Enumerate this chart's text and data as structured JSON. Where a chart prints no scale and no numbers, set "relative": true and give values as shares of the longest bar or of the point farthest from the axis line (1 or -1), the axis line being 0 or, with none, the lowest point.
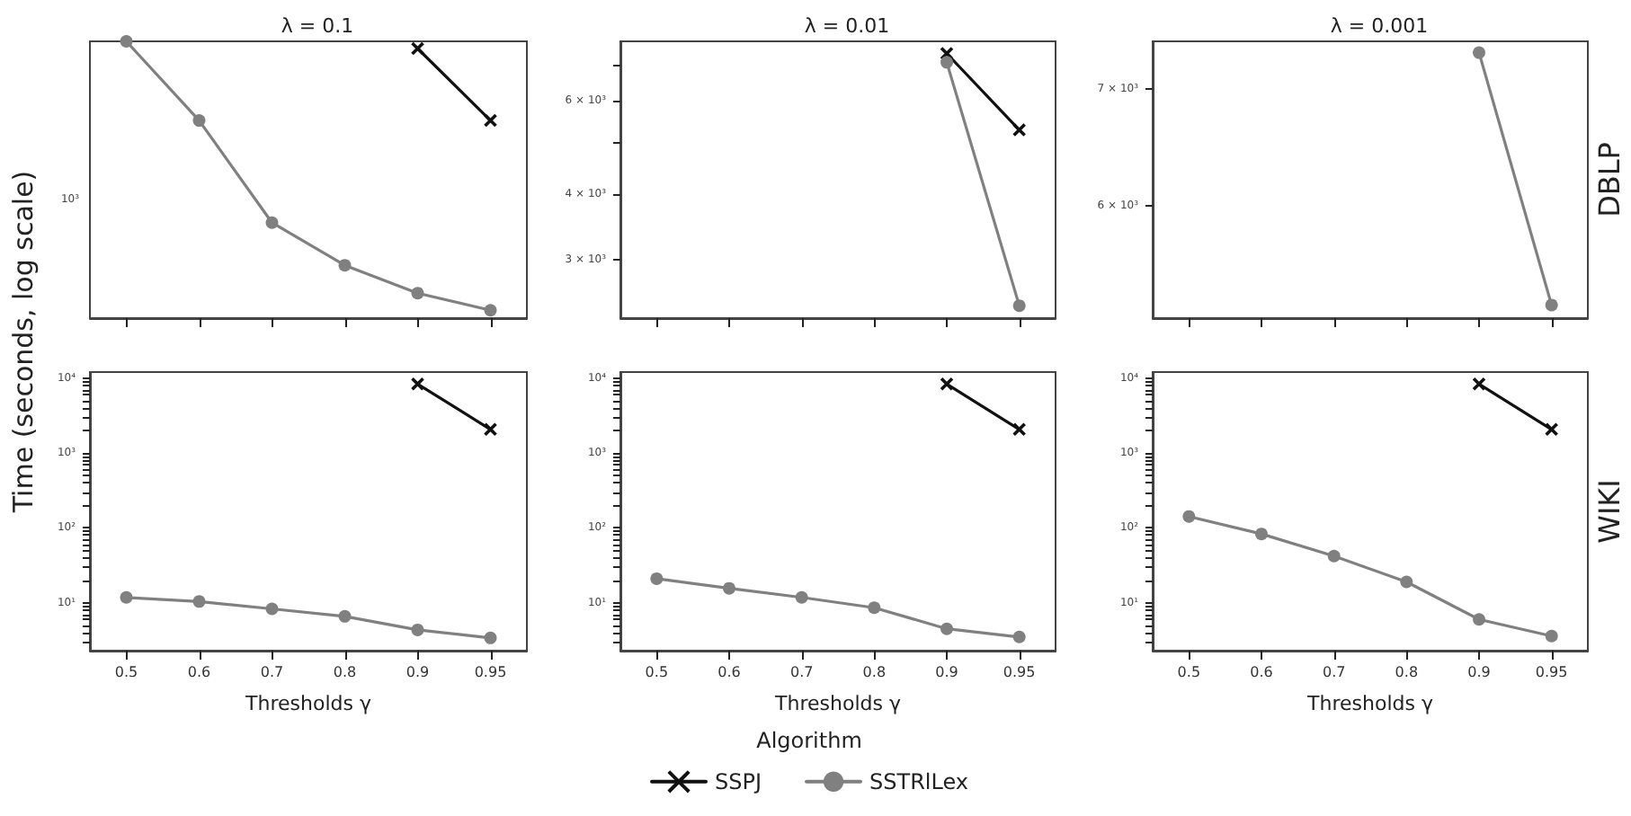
{
  "chart_data": [
    {
      "type": "line",
      "title": "λ = 0.1",
      "ylabel": "Time (seconds, log scale)",
      "relative": true,
      "tick_labels": false,
      "categories": [
        "0.5",
        "0.6",
        "0.7",
        "0.8",
        "0.9",
        "0.95"
      ],
      "annotations": [
        "10³"
      ],
      "series": [
        {
          "color": "#111111",
          "marker": "cross",
          "values": [
            null,
            null,
            null,
            null,
            0.974,
            0.714
          ]
        },
        {
          "color": "#808080",
          "marker": "circle",
          "values": [
            1,
            0.714,
            0.345,
            0.191,
            0.0903,
            0.0286
          ]
        }
      ]
    },
    {
      "type": "line",
      "title": "λ = 0.01",
      "log": true,
      "tick_labels": "y",
      "categories": [
        "0.5",
        "0.6",
        "0.7",
        "0.8",
        "0.9",
        "0.95"
      ],
      "ylim": [
        2330,
        7780
      ],
      "yticks": [
        {
          "value": 3000,
          "label": "3 × 10³"
        },
        {
          "value": 4000,
          "label": "4 × 10³"
        },
        {
          "value": 5000,
          "label": null
        },
        {
          "value": 6000,
          "label": "6 × 10³"
        },
        {
          "value": 7000,
          "label": null
        }
      ],
      "series": [
        {
          "color": "#111111",
          "marker": "cross",
          "values": [
            null,
            null,
            null,
            null,
            7380,
            5290
          ]
        },
        {
          "color": "#808080",
          "marker": "circle",
          "values": [
            null,
            null,
            null,
            null,
            7100,
            2460
          ]
        }
      ]
    },
    {
      "type": "line",
      "title": "λ = 0.001",
      "annotations": [
        "DBLP"
      ],
      "log": true,
      "tick_labels": "y",
      "categories": [
        "0.5",
        "0.6",
        "0.7",
        "0.8",
        "0.9",
        "0.95"
      ],
      "ylim": [
        5180,
        7450
      ],
      "yticks": [
        {
          "value": 6000,
          "label": "6 × 10³"
        },
        {
          "value": 7000,
          "label": "7 × 10³"
        }
      ],
      "series": [
        {
          "color": "#111111",
          "marker": "cross",
          "values": [
            null,
            null,
            null,
            null,
            null,
            null
          ]
        },
        {
          "color": "#808080",
          "marker": "circle",
          "values": [
            null,
            null,
            null,
            null,
            7340,
            5270
          ]
        }
      ]
    },
    {
      "type": "line",
      "xlabel": "Thresholds γ",
      "log": true,
      "categories": [
        "0.5",
        "0.6",
        "0.7",
        "0.8",
        "0.9",
        "0.95"
      ],
      "ylim": [
        2.3,
        12000
      ],
      "yticks": [
        {
          "value": 3,
          "label": null
        },
        {
          "value": 4,
          "label": null
        },
        {
          "value": 5,
          "label": null
        },
        {
          "value": 6,
          "label": null
        },
        {
          "value": 7,
          "label": null
        },
        {
          "value": 8,
          "label": null
        },
        {
          "value": 9,
          "label": null
        },
        {
          "value": 10,
          "label": "10¹"
        },
        {
          "value": 20,
          "label": null
        },
        {
          "value": 30,
          "label": null
        },
        {
          "value": 40,
          "label": null
        },
        {
          "value": 50,
          "label": null
        },
        {
          "value": 60,
          "label": null
        },
        {
          "value": 70,
          "label": null
        },
        {
          "value": 80,
          "label": null
        },
        {
          "value": 90,
          "label": null
        },
        {
          "value": 100,
          "label": "10²"
        },
        {
          "value": 200,
          "label": null
        },
        {
          "value": 300,
          "label": null
        },
        {
          "value": 400,
          "label": null
        },
        {
          "value": 500,
          "label": null
        },
        {
          "value": 600,
          "label": null
        },
        {
          "value": 700,
          "label": null
        },
        {
          "value": 800,
          "label": null
        },
        {
          "value": 900,
          "label": null
        },
        {
          "value": 1000,
          "label": "10³"
        },
        {
          "value": 2000,
          "label": null
        },
        {
          "value": 3000,
          "label": null
        },
        {
          "value": 4000,
          "label": null
        },
        {
          "value": 5000,
          "label": null
        },
        {
          "value": 6000,
          "label": null
        },
        {
          "value": 7000,
          "label": null
        },
        {
          "value": 8000,
          "label": null
        },
        {
          "value": 9000,
          "label": null
        },
        {
          "value": 10000,
          "label": "10⁴"
        }
      ],
      "series": [
        {
          "color": "#111111",
          "marker": "cross",
          "values": [
            null,
            null,
            null,
            null,
            8300,
            2060
          ]
        },
        {
          "color": "#808080",
          "marker": "circle",
          "values": [
            11.8,
            10.4,
            8.3,
            6.6,
            4.35,
            3.4
          ]
        }
      ]
    },
    {
      "type": "line",
      "xlabel": "Thresholds γ",
      "log": true,
      "legend": "bottom",
      "legend_title": "Algorithm",
      "categories": [
        "0.5",
        "0.6",
        "0.7",
        "0.8",
        "0.9",
        "0.95"
      ],
      "ylim": [
        2.3,
        12000
      ],
      "yticks": [
        {
          "value": 3,
          "label": null
        },
        {
          "value": 4,
          "label": null
        },
        {
          "value": 5,
          "label": null
        },
        {
          "value": 6,
          "label": null
        },
        {
          "value": 7,
          "label": null
        },
        {
          "value": 8,
          "label": null
        },
        {
          "value": 9,
          "label": null
        },
        {
          "value": 10,
          "label": "10¹"
        },
        {
          "value": 20,
          "label": null
        },
        {
          "value": 30,
          "label": null
        },
        {
          "value": 40,
          "label": null
        },
        {
          "value": 50,
          "label": null
        },
        {
          "value": 60,
          "label": null
        },
        {
          "value": 70,
          "label": null
        },
        {
          "value": 80,
          "label": null
        },
        {
          "value": 90,
          "label": null
        },
        {
          "value": 100,
          "label": "10²"
        },
        {
          "value": 200,
          "label": null
        },
        {
          "value": 300,
          "label": null
        },
        {
          "value": 400,
          "label": null
        },
        {
          "value": 500,
          "label": null
        },
        {
          "value": 600,
          "label": null
        },
        {
          "value": 700,
          "label": null
        },
        {
          "value": 800,
          "label": null
        },
        {
          "value": 900,
          "label": null
        },
        {
          "value": 1000,
          "label": "10³"
        },
        {
          "value": 2000,
          "label": null
        },
        {
          "value": 3000,
          "label": null
        },
        {
          "value": 4000,
          "label": null
        },
        {
          "value": 5000,
          "label": null
        },
        {
          "value": 6000,
          "label": null
        },
        {
          "value": 7000,
          "label": null
        },
        {
          "value": 8000,
          "label": null
        },
        {
          "value": 9000,
          "label": null
        },
        {
          "value": 10000,
          "label": "10⁴"
        }
      ],
      "series": [
        {
          "name": "SSPJ",
          "color": "#111111",
          "marker": "cross",
          "values": [
            null,
            null,
            null,
            null,
            8300,
            2060
          ]
        },
        {
          "name": "SSTRlLex",
          "color": "#808080",
          "marker": "circle",
          "values": [
            21,
            15.6,
            11.8,
            8.6,
            4.5,
            3.5
          ]
        }
      ]
    },
    {
      "type": "line",
      "xlabel": "Thresholds γ",
      "annotations": [
        "WIKI"
      ],
      "log": true,
      "categories": [
        "0.5",
        "0.6",
        "0.7",
        "0.8",
        "0.9",
        "0.95"
      ],
      "ylim": [
        2.3,
        12000
      ],
      "yticks": [
        {
          "value": 3,
          "label": null
        },
        {
          "value": 4,
          "label": null
        },
        {
          "value": 5,
          "label": null
        },
        {
          "value": 6,
          "label": null
        },
        {
          "value": 7,
          "label": null
        },
        {
          "value": 8,
          "label": null
        },
        {
          "value": 9,
          "label": null
        },
        {
          "value": 10,
          "label": "10¹"
        },
        {
          "value": 20,
          "label": null
        },
        {
          "value": 30,
          "label": null
        },
        {
          "value": 40,
          "label": null
        },
        {
          "value": 50,
          "label": null
        },
        {
          "value": 60,
          "label": null
        },
        {
          "value": 70,
          "label": null
        },
        {
          "value": 80,
          "label": null
        },
        {
          "value": 90,
          "label": null
        },
        {
          "value": 100,
          "label": "10²"
        },
        {
          "value": 200,
          "label": null
        },
        {
          "value": 300,
          "label": null
        },
        {
          "value": 400,
          "label": null
        },
        {
          "value": 500,
          "label": null
        },
        {
          "value": 600,
          "label": null
        },
        {
          "value": 700,
          "label": null
        },
        {
          "value": 800,
          "label": null
        },
        {
          "value": 900,
          "label": null
        },
        {
          "value": 1000,
          "label": "10³"
        },
        {
          "value": 2000,
          "label": null
        },
        {
          "value": 3000,
          "label": null
        },
        {
          "value": 4000,
          "label": null
        },
        {
          "value": 5000,
          "label": null
        },
        {
          "value": 6000,
          "label": null
        },
        {
          "value": 7000,
          "label": null
        },
        {
          "value": 8000,
          "label": null
        },
        {
          "value": 9000,
          "label": null
        },
        {
          "value": 10000,
          "label": "10⁴"
        }
      ],
      "series": [
        {
          "color": "#111111",
          "marker": "cross",
          "values": [
            null,
            null,
            null,
            null,
            8300,
            2060
          ]
        },
        {
          "color": "#808080",
          "marker": "circle",
          "values": [
            142,
            83,
            42,
            19,
            6.0,
            3.6
          ]
        }
      ]
    }
  ]
}
